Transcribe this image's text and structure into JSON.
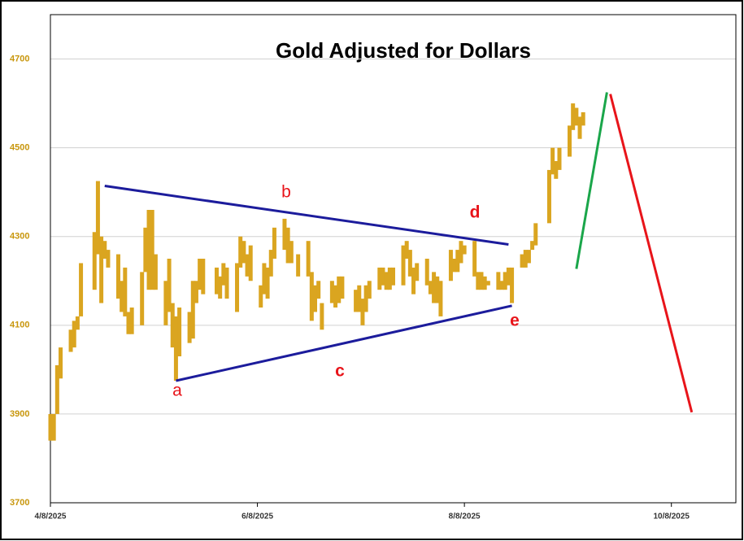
{
  "chart_data": {
    "type": "hilo",
    "title": "Gold Adjusted for Dollars",
    "color": "#DAA520",
    "x": [
      "2025-04-08",
      "2025-04-09",
      "2025-04-10",
      "2025-04-11",
      "2025-04-14",
      "2025-04-15",
      "2025-04-16",
      "2025-04-17",
      "2025-04-21",
      "2025-04-22",
      "2025-04-23",
      "2025-04-24",
      "2025-04-25",
      "2025-04-28",
      "2025-04-29",
      "2025-04-30",
      "2025-05-01",
      "2025-05-02",
      "2025-05-05",
      "2025-05-06",
      "2025-05-07",
      "2025-05-08",
      "2025-05-09",
      "2025-05-12",
      "2025-05-13",
      "2025-05-14",
      "2025-05-15",
      "2025-05-16",
      "2025-05-19",
      "2025-05-20",
      "2025-05-21",
      "2025-05-22",
      "2025-05-23",
      "2025-05-27",
      "2025-05-28",
      "2025-05-29",
      "2025-05-30",
      "2025-06-02",
      "2025-06-03",
      "2025-06-04",
      "2025-06-05",
      "2025-06-06",
      "2025-06-09",
      "2025-06-10",
      "2025-06-11",
      "2025-06-12",
      "2025-06-13",
      "2025-06-16",
      "2025-06-17",
      "2025-06-18",
      "2025-06-20",
      "2025-06-23",
      "2025-06-24",
      "2025-06-25",
      "2025-06-26",
      "2025-06-27",
      "2025-06-30",
      "2025-07-01",
      "2025-07-02",
      "2025-07-03",
      "2025-07-07",
      "2025-07-08",
      "2025-07-09",
      "2025-07-10",
      "2025-07-11",
      "2025-07-14",
      "2025-07-15",
      "2025-07-16",
      "2025-07-17",
      "2025-07-18",
      "2025-07-21",
      "2025-07-22",
      "2025-07-23",
      "2025-07-24",
      "2025-07-25",
      "2025-07-28",
      "2025-07-29",
      "2025-07-30",
      "2025-07-31",
      "2025-08-01",
      "2025-08-04",
      "2025-08-05",
      "2025-08-06",
      "2025-08-07",
      "2025-08-08",
      "2025-08-11",
      "2025-08-12",
      "2025-08-13",
      "2025-08-14",
      "2025-08-15",
      "2025-08-18",
      "2025-08-19",
      "2025-08-20",
      "2025-08-21",
      "2025-08-22",
      "2025-08-25",
      "2025-08-26",
      "2025-08-27",
      "2025-08-28",
      "2025-08-29",
      "2025-09-02",
      "2025-09-03",
      "2025-09-04",
      "2025-09-05",
      "2025-09-08",
      "2025-09-09",
      "2025-09-10",
      "2025-09-11",
      "2025-09-12"
    ],
    "low": [
      3840,
      3840,
      3900,
      3980,
      4040,
      4050,
      4090,
      4120,
      4180,
      4260,
      4150,
      4250,
      4230,
      4160,
      4130,
      4120,
      4080,
      4080,
      4100,
      4220,
      4180,
      4180,
      4180,
      4100,
      4130,
      4050,
      3975,
      4030,
      4060,
      4070,
      4150,
      4180,
      4170,
      4170,
      4160,
      4190,
      4160,
      4130,
      4230,
      4240,
      4210,
      4200,
      4140,
      4170,
      4160,
      4210,
      4250,
      4270,
      4240,
      4240,
      4210,
      4210,
      4110,
      4130,
      4160,
      4090,
      4150,
      4140,
      4150,
      4160,
      4130,
      4130,
      4100,
      4130,
      4160,
      4180,
      4190,
      4180,
      4180,
      4190,
      4190,
      4250,
      4210,
      4170,
      4200,
      4190,
      4170,
      4150,
      4150,
      4120,
      4200,
      4220,
      4220,
      4240,
      4260,
      4210,
      4180,
      4180,
      4180,
      4190,
      4180,
      4180,
      4180,
      4190,
      4150,
      4230,
      4230,
      4240,
      4270,
      4280,
      4330,
      4440,
      4430,
      4450,
      4480,
      4540,
      4550,
      4520,
      4550
    ],
    "high": [
      3900,
      3900,
      4010,
      4050,
      4090,
      4110,
      4120,
      4240,
      4310,
      4425,
      4300,
      4290,
      4270,
      4260,
      4200,
      4230,
      4130,
      4140,
      4220,
      4320,
      4360,
      4360,
      4260,
      4200,
      4250,
      4150,
      4120,
      4140,
      4130,
      4200,
      4200,
      4250,
      4250,
      4230,
      4210,
      4240,
      4230,
      4240,
      4300,
      4290,
      4260,
      4280,
      4190,
      4240,
      4230,
      4270,
      4320,
      4340,
      4320,
      4290,
      4260,
      4290,
      4220,
      4190,
      4200,
      4150,
      4200,
      4190,
      4210,
      4210,
      4180,
      4190,
      4160,
      4190,
      4200,
      4230,
      4230,
      4220,
      4230,
      4230,
      4280,
      4290,
      4270,
      4230,
      4240,
      4250,
      4200,
      4220,
      4210,
      4200,
      4270,
      4250,
      4270,
      4290,
      4280,
      4290,
      4220,
      4220,
      4210,
      4200,
      4220,
      4200,
      4220,
      4230,
      4230,
      4260,
      4270,
      4270,
      4290,
      4330,
      4450,
      4500,
      4470,
      4500,
      4550,
      4600,
      4590,
      4570,
      4580
    ],
    "xlim": [
      "2025-04-08",
      "2025-10-27"
    ],
    "ylim": [
      3700,
      4800
    ],
    "xticks": [
      {
        "value": "2025-04-08",
        "label": "4/8/2025"
      },
      {
        "value": "2025-06-08",
        "label": "6/8/2025"
      },
      {
        "value": "2025-08-08",
        "label": "8/8/2025"
      },
      {
        "value": "2025-10-08",
        "label": "10/8/2025"
      }
    ],
    "yticks": [
      3700,
      3900,
      4100,
      4300,
      4500,
      4700
    ],
    "grid": true,
    "lines": [
      {
        "color": "#1c1c9c",
        "x": [
          "2025-04-24",
          "2025-08-21"
        ],
        "y": [
          4414,
          4282
        ]
      },
      {
        "color": "#1c1c9c",
        "x": [
          "2025-05-15",
          "2025-08-22"
        ],
        "y": [
          3975,
          4144
        ]
      },
      {
        "color": "#1aa64a",
        "x": [
          "2025-09-10",
          "2025-09-19"
        ],
        "y": [
          4227,
          4625
        ]
      },
      {
        "color": "#e8141a",
        "x": [
          "2025-09-20",
          "2025-10-14"
        ],
        "y": [
          4621,
          3904
        ]
      }
    ],
    "annotations": [
      {
        "text": "a",
        "color": "#e8141a"
      },
      {
        "text": "b",
        "color": "#e8141a"
      },
      {
        "text": "c",
        "color": "#e8141a"
      },
      {
        "text": "d",
        "color": "#e8141a"
      },
      {
        "text": "e",
        "color": "#e8141a"
      }
    ]
  }
}
